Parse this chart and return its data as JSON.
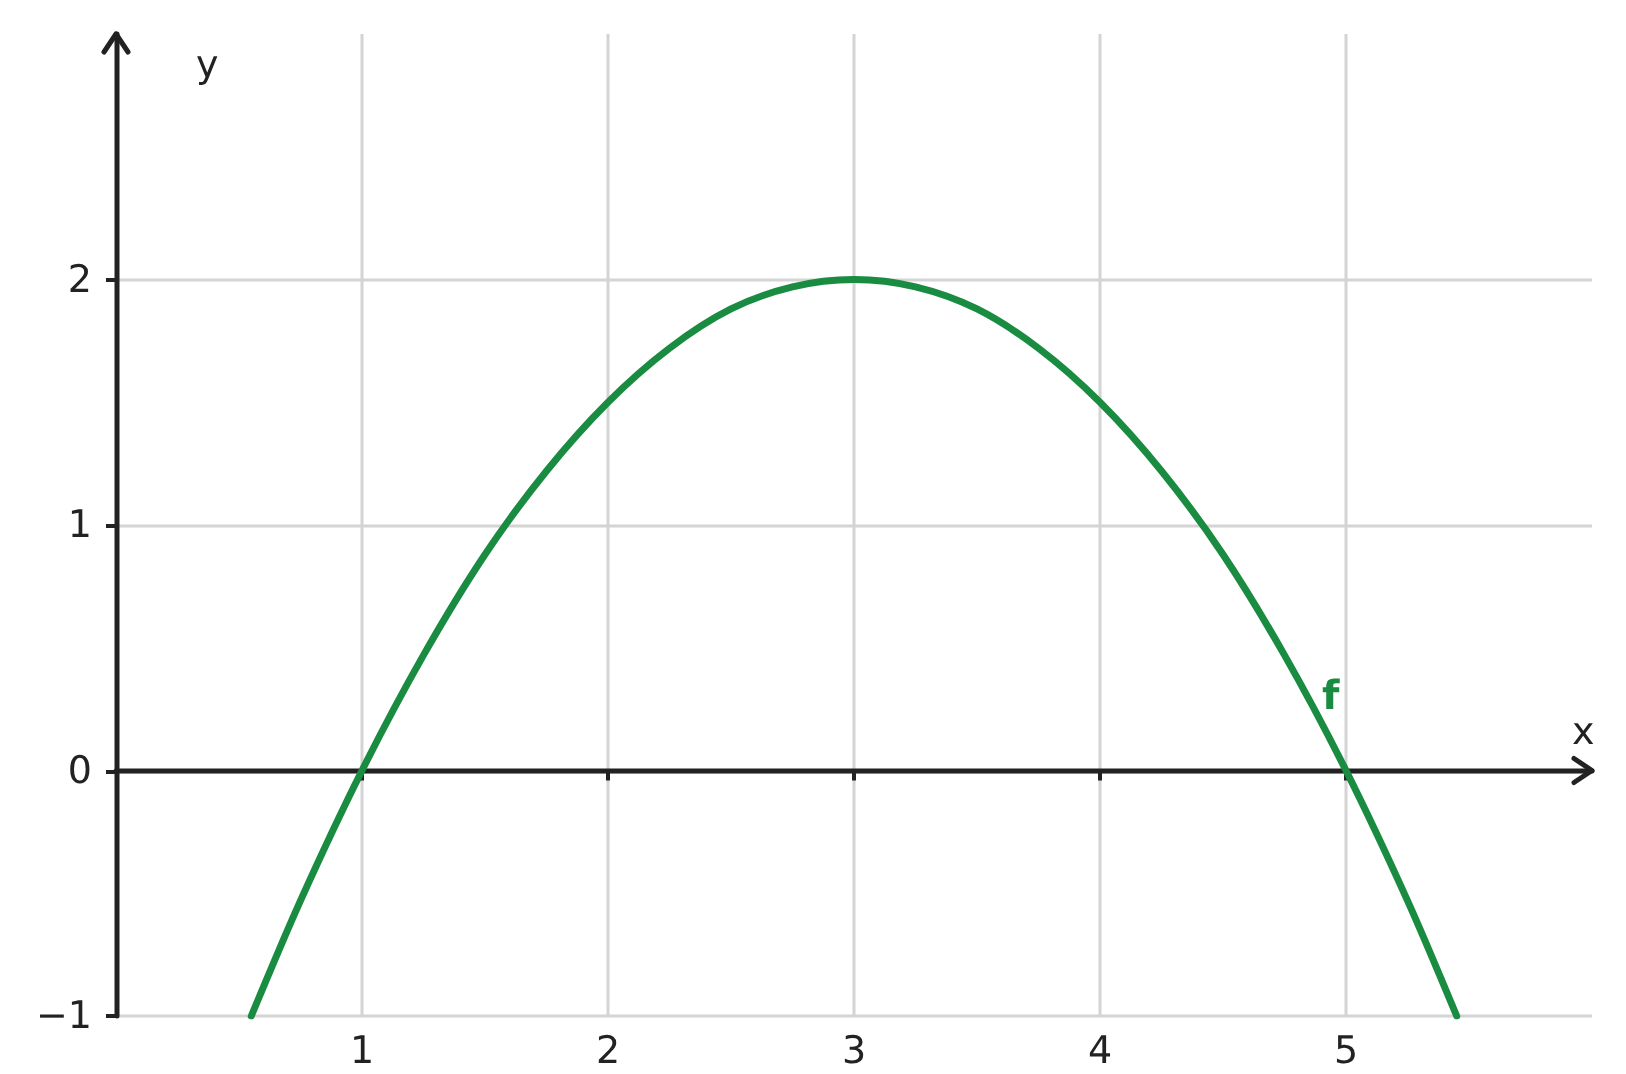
{
  "chart_data": {
    "type": "line",
    "xlabel": "x",
    "ylabel": "y",
    "series": [
      {
        "name": "f",
        "color": "#1a8c42",
        "x": [
          0.55,
          0.75,
          1,
          1.25,
          1.5,
          1.75,
          2,
          2.25,
          2.5,
          2.75,
          3,
          3.25,
          3.5,
          3.75,
          4,
          4.25,
          4.5,
          4.75,
          5,
          5.25,
          5.45
        ],
        "values": [
          -1.0,
          -0.53,
          0,
          0.47,
          0.88,
          1.22,
          1.5,
          1.72,
          1.88,
          1.97,
          2,
          1.97,
          1.88,
          1.72,
          1.5,
          1.22,
          0.88,
          0.47,
          0,
          -0.53,
          -1.0
        ]
      }
    ],
    "xlim": [
      0,
      6
    ],
    "xticks": [
      1,
      2,
      3,
      4,
      5
    ],
    "ylim": [
      -1,
      3
    ],
    "yticks": [
      {
        "value": -1,
        "label": "−1"
      },
      0,
      1,
      2
    ],
    "grid": true,
    "legend": false,
    "line_style": "solid"
  }
}
